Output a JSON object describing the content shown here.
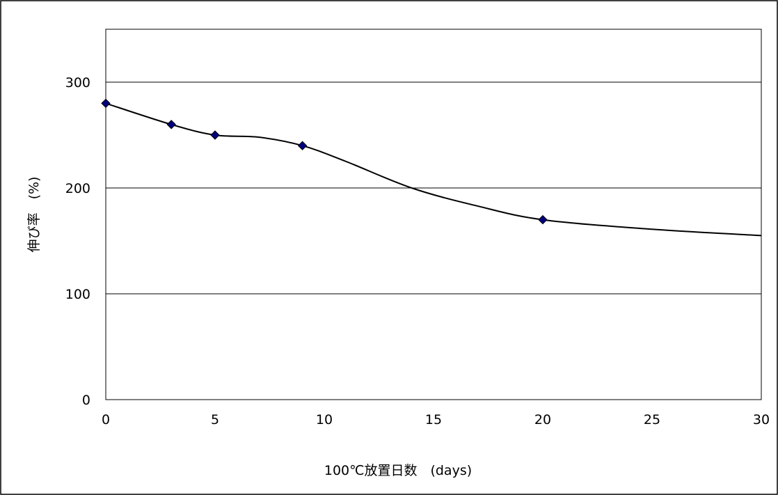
{
  "chart_data": {
    "type": "scatter",
    "title": "",
    "xlabel": "100℃放置日数　(days)",
    "ylabel": "伸び率　(%)",
    "xlim": [
      0,
      30
    ],
    "ylim": [
      0,
      350
    ],
    "xticks": [
      0,
      5,
      10,
      15,
      20,
      25,
      30
    ],
    "yticks": [
      0,
      100,
      200,
      300
    ],
    "grid": {
      "y": true,
      "x": false
    },
    "legend": "none",
    "series": [
      {
        "color": "#000080",
        "marker": "diamond",
        "points": [
          {
            "x": 0,
            "y": 280
          },
          {
            "x": 3,
            "y": 260
          },
          {
            "x": 5,
            "y": 250
          },
          {
            "x": 9,
            "y": 240
          },
          {
            "x": 20,
            "y": 170
          }
        ]
      }
    ],
    "trendline": {
      "color": "#000000",
      "style": "smooth",
      "points": [
        {
          "x": 0,
          "y": 280
        },
        {
          "x": 3,
          "y": 260
        },
        {
          "x": 5,
          "y": 250
        },
        {
          "x": 7,
          "y": 248
        },
        {
          "x": 9,
          "y": 240
        },
        {
          "x": 11,
          "y": 225
        },
        {
          "x": 14,
          "y": 200
        },
        {
          "x": 17,
          "y": 183
        },
        {
          "x": 20,
          "y": 170
        },
        {
          "x": 25,
          "y": 161
        },
        {
          "x": 30,
          "y": 155
        }
      ]
    }
  }
}
